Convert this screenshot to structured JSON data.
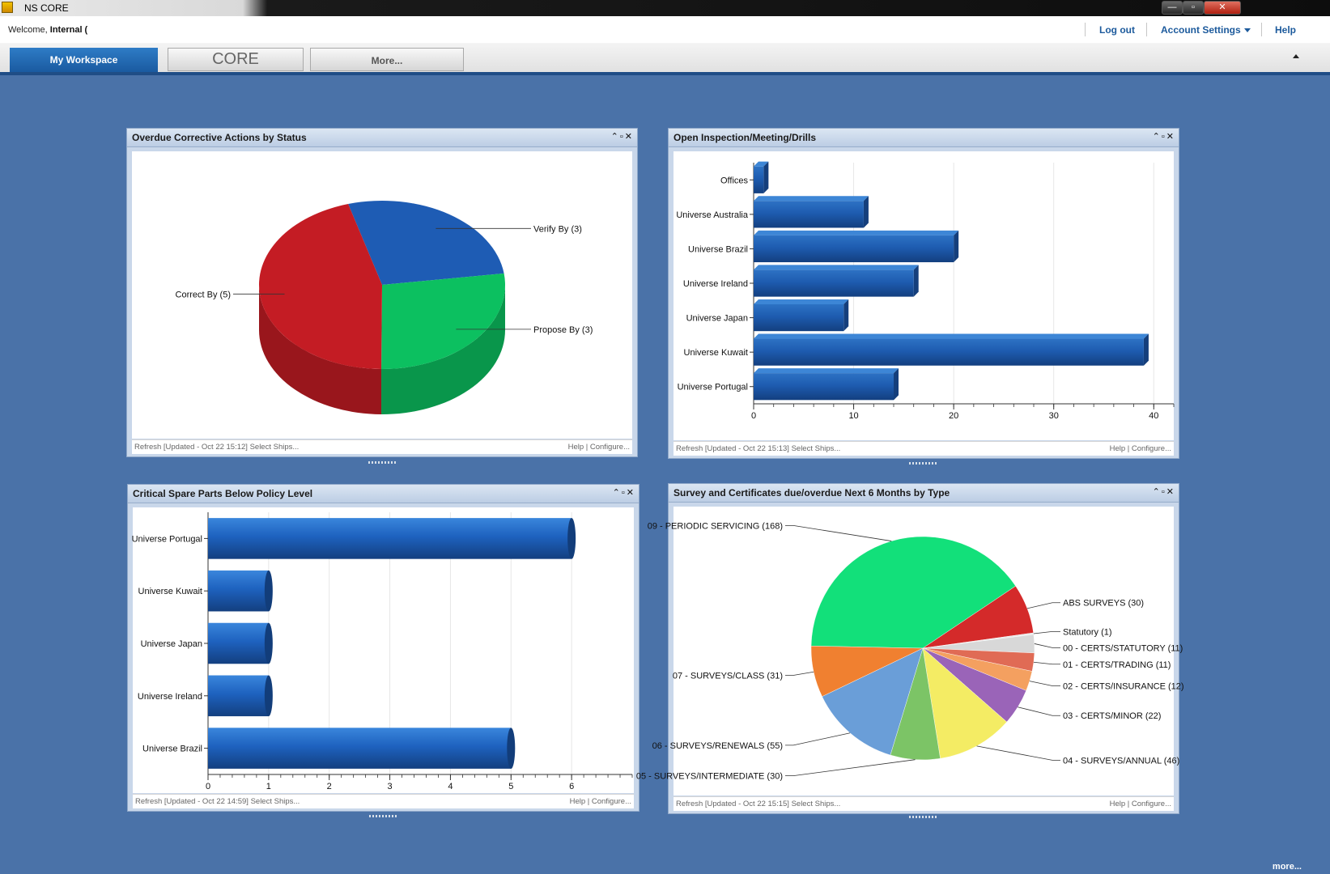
{
  "window": {
    "title": "NS CORE",
    "controls": [
      "—",
      "▫",
      "✕"
    ]
  },
  "header": {
    "welcome_prefix": "Welcome,",
    "welcome_user": "Internal (",
    "logout": "Log out",
    "account_settings": "Account Settings",
    "help": "Help"
  },
  "tabs": {
    "active": "My Workspace",
    "core": "CORE",
    "more": "More..."
  },
  "portlets": {
    "p1": {
      "title": "Overdue Corrective Actions by Status",
      "footer_left": "Refresh [Updated - Oct 22 15:12]  Select Ships...",
      "footer_right": "Help | Configure..."
    },
    "p2": {
      "title": "Open Inspection/Meeting/Drills",
      "footer_left": "Refresh [Updated - Oct 22 15:13]  Select Ships...",
      "footer_right": "Help | Configure..."
    },
    "p3": {
      "title": "Critical Spare Parts Below Policy Level",
      "footer_left": "Refresh [Updated - Oct 22 14:59]  Select Ships...",
      "footer_right": "Help | Configure..."
    },
    "p4": {
      "title": "Survey and Certificates due/overdue Next 6 Months by Type",
      "footer_left": "Refresh [Updated - Oct 22 15:15]  Select Ships...",
      "footer_right": "Help | Configure..."
    },
    "controls": "⌃▫✕"
  },
  "more_link": "more...",
  "colors": {
    "background": "#4a72a8",
    "accent": "#1a5aa0",
    "bar": "#1e5cb0"
  },
  "chart_data": [
    {
      "type": "pie",
      "categories": [
        "Verify By (3)",
        "Propose By (3)",
        "Correct By (5)"
      ],
      "values": [
        3,
        3,
        5
      ],
      "colors": [
        "#1e5cb4",
        "#0cc060",
        "#c41c24"
      ]
    },
    {
      "type": "bar",
      "orientation": "horizontal",
      "categories": [
        "Offices",
        "Universe Australia",
        "Universe Brazil",
        "Universe Ireland",
        "Universe Japan",
        "Universe Kuwait",
        "Universe Portugal"
      ],
      "values": [
        1,
        11,
        20,
        16,
        9,
        39,
        14
      ],
      "xlim": [
        0,
        42
      ],
      "ticks": [
        "0",
        "10",
        "20",
        "30",
        "40"
      ],
      "tick_values": [
        0,
        10,
        20,
        30,
        40
      ]
    },
    {
      "type": "bar",
      "orientation": "horizontal",
      "categories": [
        "Universe Portugal",
        "Universe Kuwait",
        "Universe Japan",
        "Universe Ireland",
        "Universe Brazil"
      ],
      "values": [
        6,
        1,
        1,
        1,
        5
      ],
      "xlim": [
        0,
        7
      ],
      "ticks": [
        "0",
        "1",
        "2",
        "3",
        "4",
        "5",
        "6"
      ],
      "tick_values": [
        0,
        1,
        2,
        3,
        4,
        5,
        6
      ]
    },
    {
      "type": "pie",
      "categories": [
        "09 - PERIODIC SERVICING (168)",
        "ABS SURVEYS (30)",
        "Statutory (1)",
        "00 - CERTS/STATUTORY (11)",
        "01 - CERTS/TRADING (11)",
        "02 - CERTS/INSURANCE (12)",
        "03 - CERTS/MINOR (22)",
        "04 - SURVEYS/ANNUAL (46)",
        "05 - SURVEYS/INTERMEDIATE (30)",
        "06 - SURVEYS/RENEWALS (55)",
        "07 - SURVEYS/CLASS (31)"
      ],
      "values": [
        168,
        30,
        1,
        11,
        11,
        12,
        22,
        46,
        30,
        55,
        31
      ],
      "colors": [
        "#12e07a",
        "#d42a2a",
        "#e8e8e8",
        "#d8d8d8",
        "#e06b55",
        "#f4a060",
        "#9a64b8",
        "#f4ec64",
        "#7cc466",
        "#6a9ed8",
        "#f08030"
      ]
    }
  ]
}
